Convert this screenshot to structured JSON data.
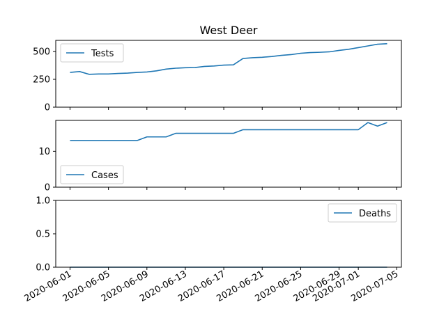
{
  "chart_data": {
    "type": "line",
    "title": "West Deer",
    "line_color": "#1f77b4",
    "x_tick_labels": [
      "2020-06-01",
      "2020-06-05",
      "2020-06-09",
      "2020-06-13",
      "2020-06-17",
      "2020-06-21",
      "2020-06-25",
      "2020-06-29",
      "2020-07-01",
      "2020-07-05"
    ],
    "x": [
      "2020-06-01",
      "2020-06-02",
      "2020-06-03",
      "2020-06-04",
      "2020-06-05",
      "2020-06-06",
      "2020-06-07",
      "2020-06-08",
      "2020-06-09",
      "2020-06-10",
      "2020-06-11",
      "2020-06-12",
      "2020-06-13",
      "2020-06-14",
      "2020-06-15",
      "2020-06-16",
      "2020-06-17",
      "2020-06-18",
      "2020-06-19",
      "2020-06-20",
      "2020-06-21",
      "2020-06-22",
      "2020-06-23",
      "2020-06-24",
      "2020-06-25",
      "2020-06-26",
      "2020-06-27",
      "2020-06-28",
      "2020-06-29",
      "2020-06-30",
      "2020-07-01",
      "2020-07-02",
      "2020-07-03",
      "2020-07-04"
    ],
    "panels": [
      {
        "name": "Tests",
        "legend_position": "upper-left",
        "ylim": [
          0,
          600
        ],
        "yticks": [
          0,
          250,
          500
        ],
        "values": [
          312,
          320,
          295,
          298,
          298,
          303,
          306,
          312,
          316,
          326,
          342,
          350,
          354,
          356,
          366,
          370,
          378,
          380,
          437,
          444,
          448,
          455,
          465,
          472,
          484,
          490,
          493,
          497,
          510,
          520,
          535,
          550,
          565,
          570
        ]
      },
      {
        "name": "Cases",
        "legend_position": "lower-left",
        "ylim": [
          0,
          18.6
        ],
        "yticks": [
          0,
          10
        ],
        "values": [
          13,
          13,
          13,
          13,
          13,
          13,
          13,
          13,
          14,
          14,
          14,
          15,
          15,
          15,
          15,
          15,
          15,
          15,
          16,
          16,
          16,
          16,
          16,
          16,
          16,
          16,
          16,
          16,
          16,
          16,
          16,
          18,
          17,
          18
        ]
      },
      {
        "name": "Deaths",
        "legend_position": "upper-right",
        "ylim": [
          0,
          1.0
        ],
        "yticks": [
          0.0,
          0.5,
          1.0
        ],
        "ytick_labels": [
          "0.0",
          "0.5",
          "1.0"
        ],
        "values": [
          0,
          0,
          0,
          0,
          0,
          0,
          0,
          0,
          0,
          0,
          0,
          0,
          0,
          0,
          0,
          0,
          0,
          0,
          0,
          0,
          0,
          0,
          0,
          0,
          0,
          0,
          0,
          0,
          0,
          0,
          0,
          0,
          0,
          0
        ]
      }
    ]
  }
}
